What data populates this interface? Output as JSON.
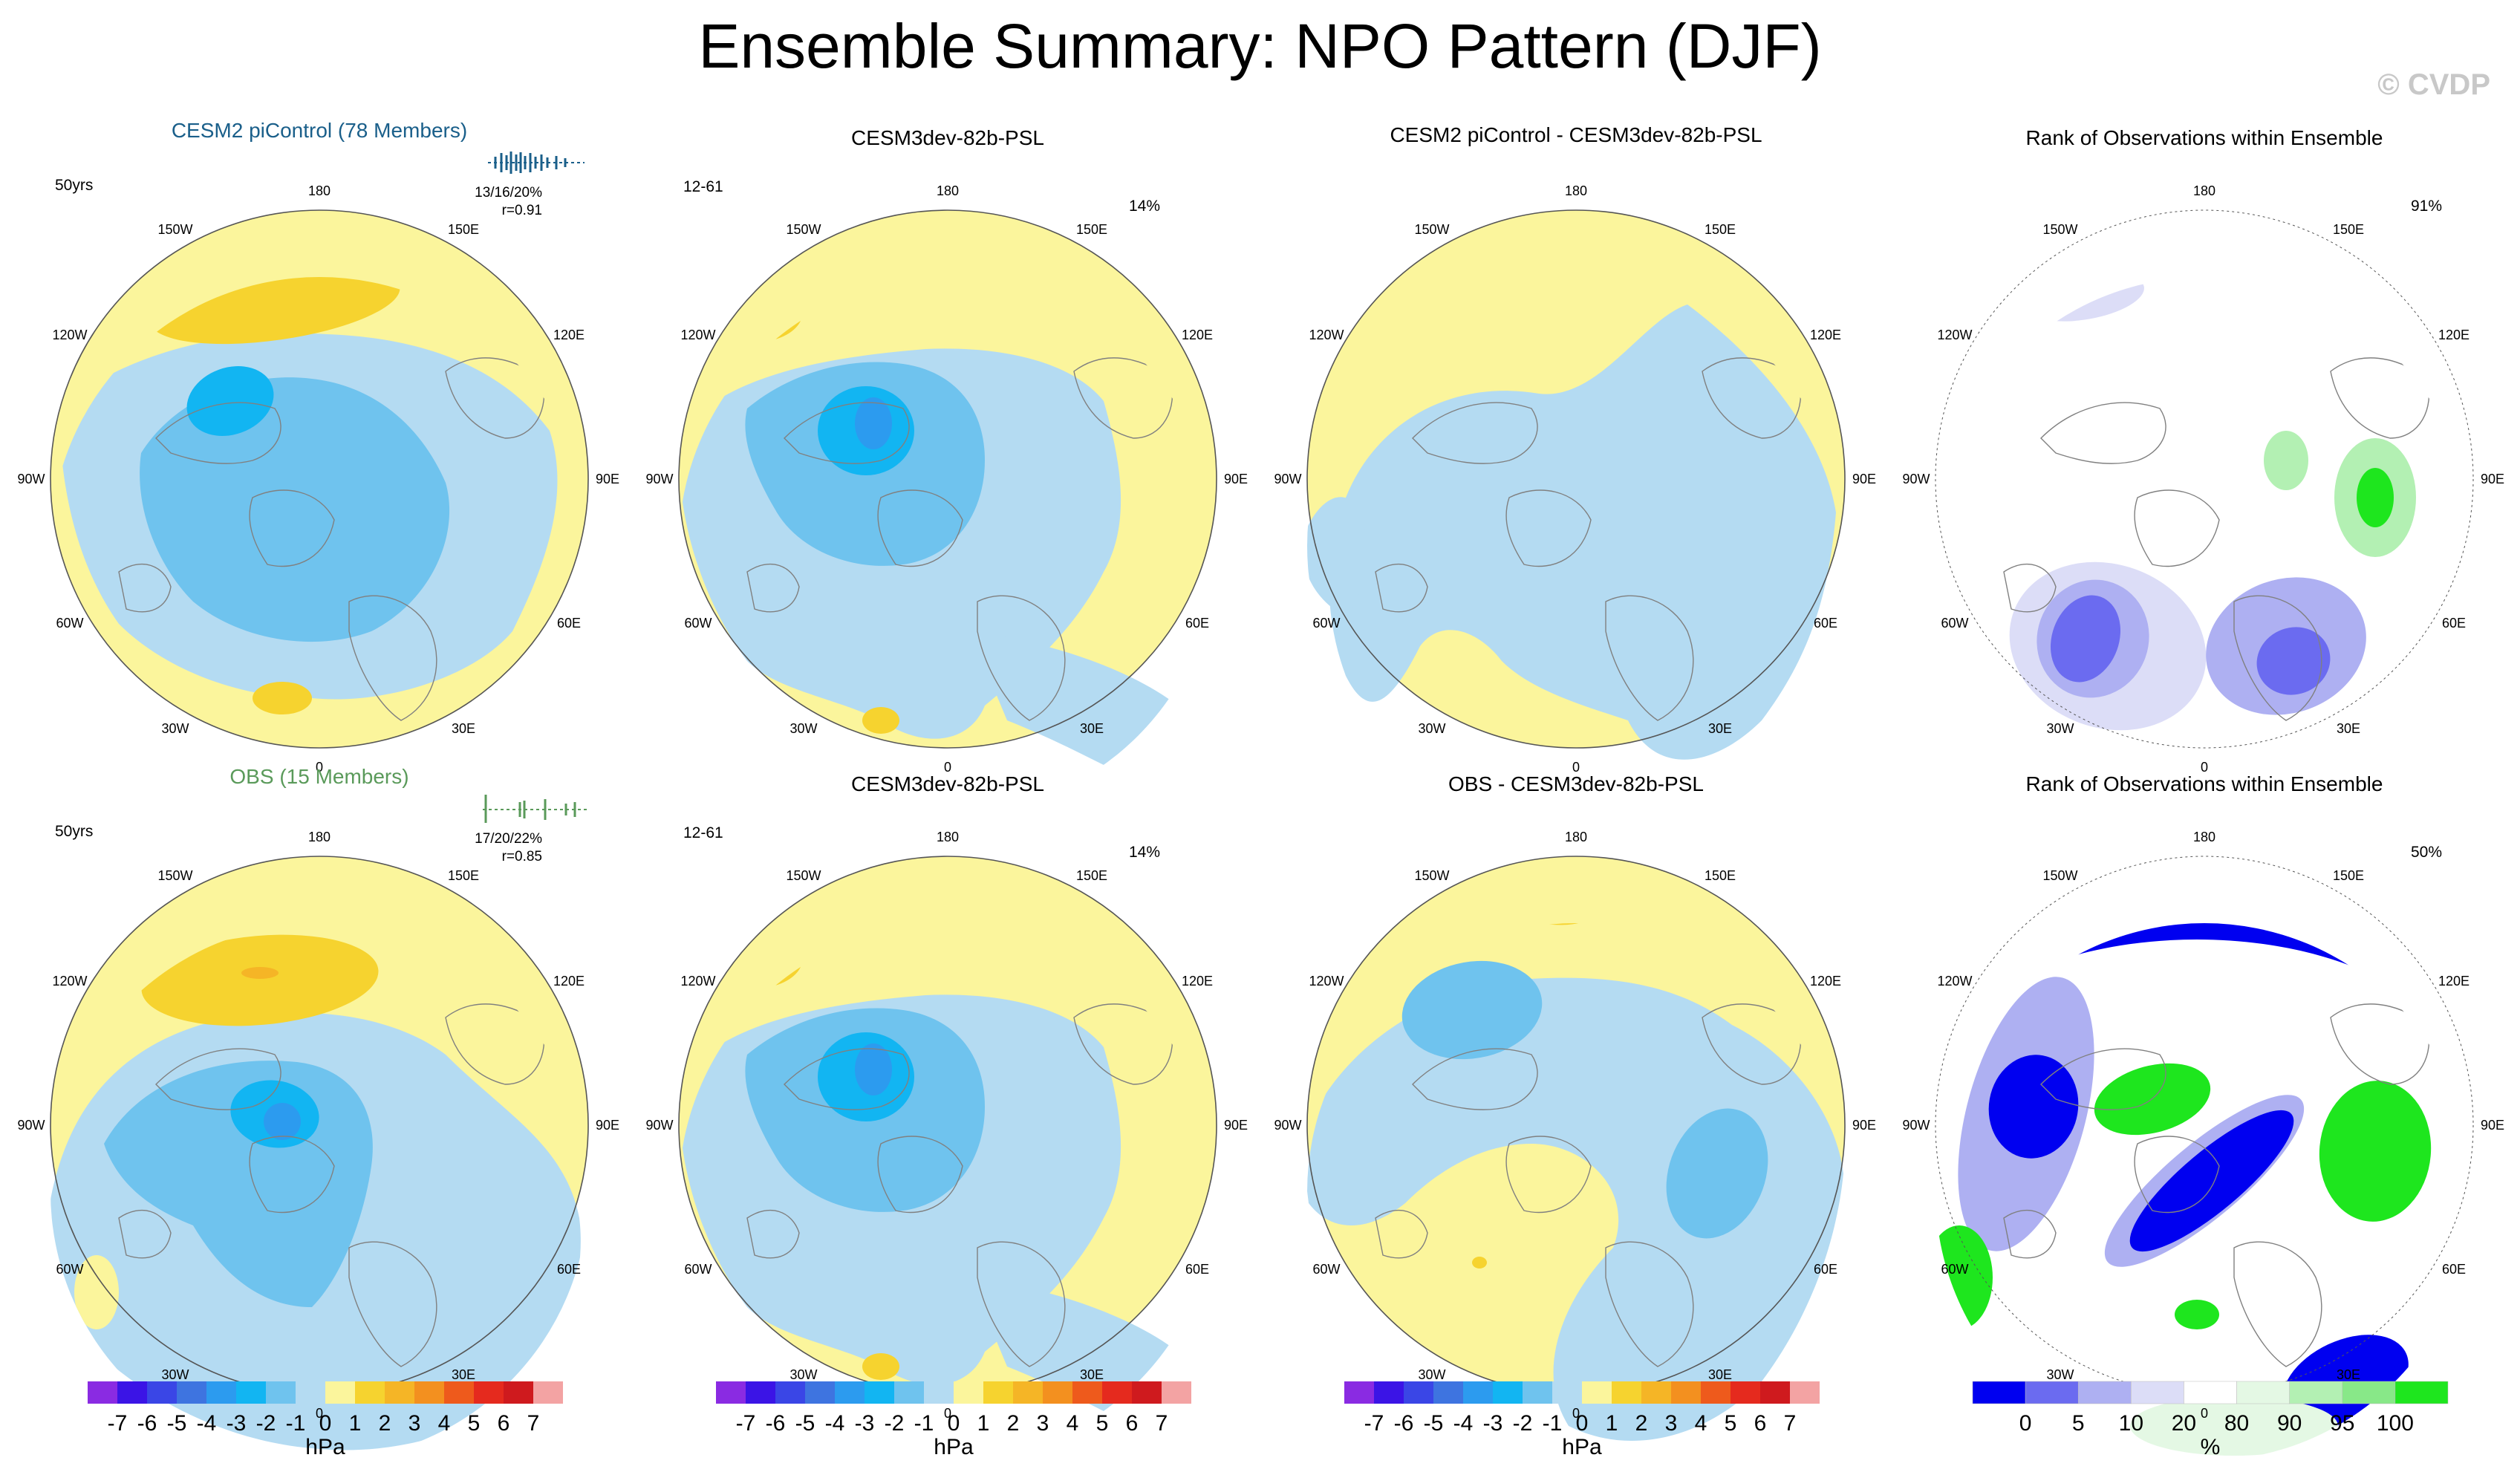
{
  "figure": {
    "title": "Ensemble Summary: NPO Pattern (DJF)",
    "credit": "© CVDP"
  },
  "longitude_labels": [
    "180",
    "150E",
    "120E",
    "90E",
    "60E",
    "30E",
    "0",
    "30W",
    "60W",
    "90W",
    "120W",
    "150W"
  ],
  "colors": {
    "hpa_palette": [
      "#8a2be2",
      "#3b14e6",
      "#3a46e6",
      "#3e74e0",
      "#2c9bef",
      "#12b5f2",
      "#6fc3ee",
      "#b4dbf2",
      "#fbf59c",
      "#f6d32f",
      "#f5b526",
      "#f3901f",
      "#ee5a1c",
      "#e52a1e",
      "#cf1a1e",
      "#f3a3a3"
    ],
    "rank_palette": [
      "#0000f0",
      "#6b6bf0",
      "#aeb0f2",
      "#dcddf7",
      "#ffffff",
      "#e4f8e4",
      "#b3f0b3",
      "#88e888",
      "#1ee61e"
    ],
    "ocean": "#fbf59c",
    "coast": "#808080"
  },
  "panels": {
    "p1": {
      "title": "CESM2 piControl (78 Members)",
      "left_label": "50yrs",
      "stats_line1": "13/16/20%",
      "stats_line2": "r=0.91"
    },
    "p2": {
      "title": "CESM3dev-82b-PSL",
      "left_label": "12-61",
      "right_label": "14%"
    },
    "p3": {
      "title": "CESM2 piControl - CESM3dev-82b-PSL"
    },
    "p4": {
      "title": "Rank of Observations within Ensemble",
      "right_label": "91%"
    },
    "p5": {
      "title": "OBS (15 Members)",
      "left_label": "50yrs",
      "stats_line1": "17/20/22%",
      "stats_line2": "r=0.85"
    },
    "p6": {
      "title": "CESM3dev-82b-PSL",
      "left_label": "12-61",
      "right_label": "14%"
    },
    "p7": {
      "title": "OBS - CESM3dev-82b-PSL"
    },
    "p8": {
      "title": "Rank of Observations within Ensemble",
      "right_label": "50%"
    }
  },
  "colorbars": {
    "hpa": {
      "unit": "hPa",
      "ticks": [
        "-7",
        "-6",
        "-5",
        "-4",
        "-3",
        "-2",
        "-1",
        "0",
        "1",
        "2",
        "3",
        "4",
        "5",
        "6",
        "7"
      ]
    },
    "rank": {
      "unit": "%",
      "ticks": [
        "0",
        "5",
        "10",
        "20",
        "80",
        "90",
        "95",
        "100"
      ]
    }
  }
}
